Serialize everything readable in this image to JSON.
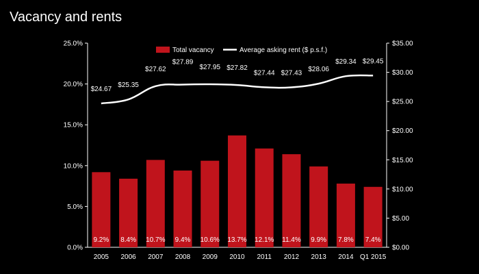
{
  "page": {
    "title": "Vacancy and rents"
  },
  "chart_data": {
    "type": "bar+line",
    "categories": [
      "2005",
      "2006",
      "2007",
      "2008",
      "2009",
      "2010",
      "2011",
      "2012",
      "2013",
      "2014",
      "Q1 2015"
    ],
    "series": [
      {
        "name": "Total vacancy",
        "type": "bar",
        "axis": "left",
        "values": [
          9.2,
          8.4,
          10.7,
          9.4,
          10.6,
          13.7,
          12.1,
          11.4,
          9.9,
          7.8,
          7.4
        ],
        "labels": [
          "9.2%",
          "8.4%",
          "10.7%",
          "9.4%",
          "10.6%",
          "13.7%",
          "12.1%",
          "11.4%",
          "9.9%",
          "7.8%",
          "7.4%"
        ],
        "color": "#c0141c"
      },
      {
        "name": "Average asking rent ($ p.s.f.)",
        "type": "line",
        "axis": "right",
        "values": [
          24.67,
          25.35,
          27.62,
          27.89,
          27.95,
          27.82,
          27.44,
          27.43,
          28.06,
          29.34,
          29.45
        ],
        "labels": [
          "$24.67",
          "$25.35",
          "$27.62",
          "$27.89",
          "$27.95",
          "$27.82",
          "$27.44",
          "$27.43",
          "$28.06",
          "$29.34",
          "$29.45"
        ],
        "color": "#ffffff"
      }
    ],
    "y_left": {
      "ylim": [
        0,
        25
      ],
      "ticks": [
        0,
        5,
        10,
        15,
        20,
        25
      ],
      "tick_labels": [
        "0.0%",
        "5.0%",
        "10.0%",
        "15.0%",
        "20.0%",
        "25.0%"
      ]
    },
    "y_right": {
      "ylim": [
        0,
        35
      ],
      "ticks": [
        0,
        5,
        10,
        15,
        20,
        25,
        30,
        35
      ],
      "tick_labels": [
        "$0.00",
        "$5.00",
        "$10.00",
        "$15.00",
        "$20.00",
        "$25.00",
        "$30.00",
        "$35.00"
      ]
    },
    "legend": {
      "placement": "top-center"
    },
    "grid": false
  }
}
